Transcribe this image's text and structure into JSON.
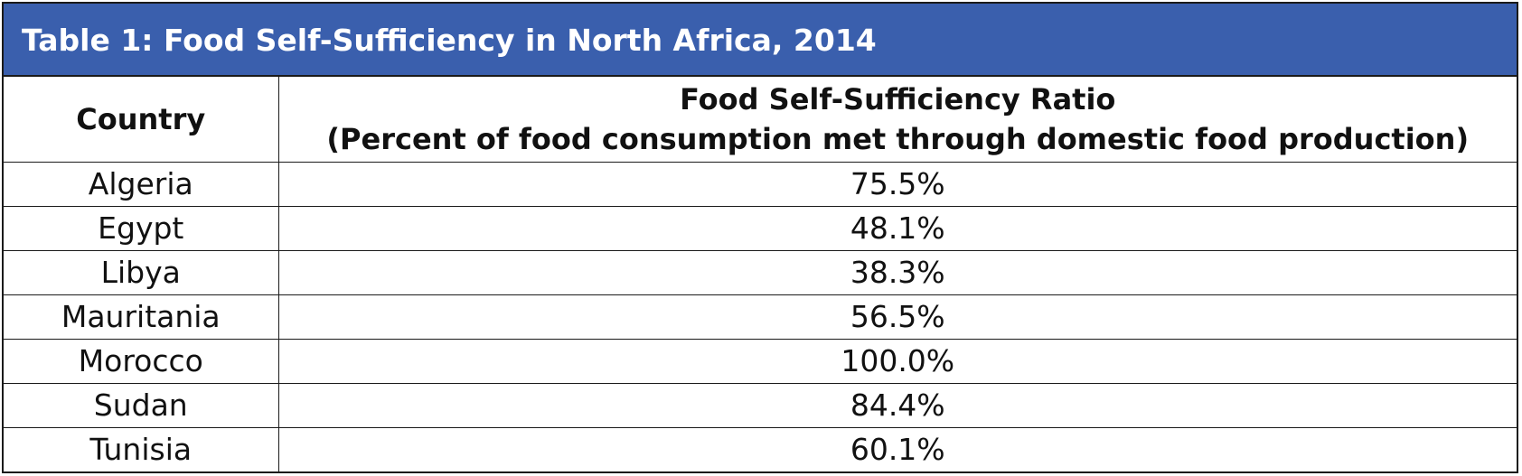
{
  "table": {
    "title": "Table 1: Food Self-Sufficiency in North Africa, 2014",
    "headers": {
      "country": "Country",
      "ratio_line1": "Food Self-Sufficiency Ratio",
      "ratio_line2": "(Percent of food consumption met through domestic food production)"
    },
    "rows": [
      {
        "country": "Algeria",
        "ratio": "75.5%"
      },
      {
        "country": "Egypt",
        "ratio": "48.1%"
      },
      {
        "country": "Libya",
        "ratio": "38.3%"
      },
      {
        "country": "Mauritania",
        "ratio": "56.5%"
      },
      {
        "country": "Morocco",
        "ratio": "100.0%"
      },
      {
        "country": "Sudan",
        "ratio": "84.4%"
      },
      {
        "country": "Tunisia",
        "ratio": "60.1%"
      }
    ]
  },
  "colors": {
    "title_background": "#3a5fad",
    "title_text": "#ffffff",
    "border": "#1a1a1a"
  }
}
